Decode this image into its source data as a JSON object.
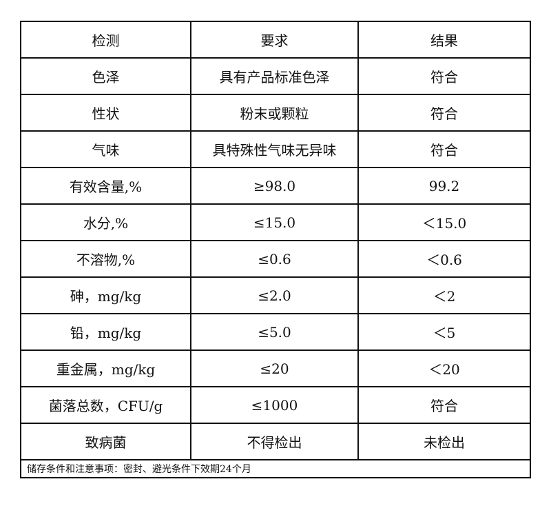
{
  "header": [
    "检测",
    "要求",
    "结果"
  ],
  "rows": [
    [
      "色泽",
      "具有产品标准色泽",
      "符合"
    ],
    [
      "性状",
      "粉末或颗粒",
      "符合"
    ],
    [
      "气味",
      "具特殊性气味无异味",
      "符合"
    ],
    [
      "有效含量,%",
      "≥98.0",
      "99.2"
    ],
    [
      "水分,%",
      "≤15.0",
      "＜15.0"
    ],
    [
      "不溶物,%",
      "≤0.6",
      "＜0.6"
    ],
    [
      "砷，mg/kg",
      "≤2.0",
      "＜2"
    ],
    [
      "铅，mg/kg",
      "≤5.0",
      "＜5"
    ],
    [
      "重金属，mg/kg",
      "≤20",
      "＜20"
    ],
    [
      "菌落总数，CFU/g",
      "≤1000",
      "符合"
    ],
    [
      "致病菌",
      "不得检出",
      "未检出"
    ]
  ],
  "footer": "储存条件和注意事项：密封、避光条件下效期24个月"
}
